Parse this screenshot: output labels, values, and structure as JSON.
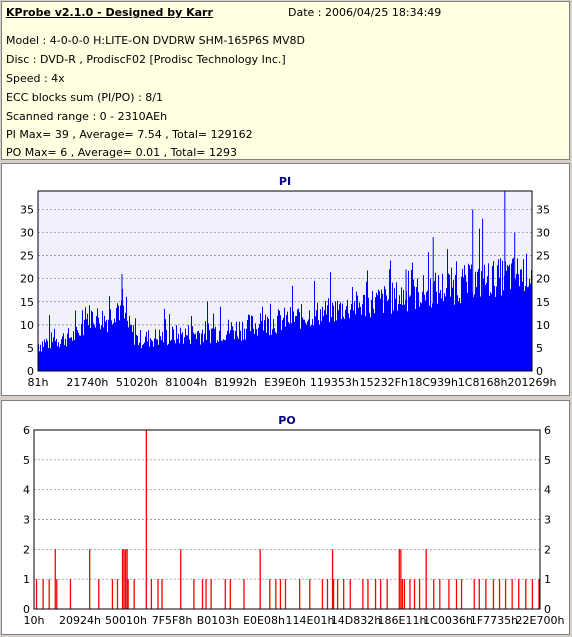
{
  "info": {
    "title": "KProbe v2.1.0 - Designed by Karr",
    "date": "Date : 2006/04/25 18:34:49",
    "lines": [
      "Model : 4-0-0-0 H:LITE-ON DVDRW SHM-165P6S MV8D",
      "Disc : DVD-R , ProdiscF02 [Prodisc Technology Inc.]",
      "Speed : 4x",
      "ECC blocks sum (PI/PO) : 8/1",
      "Scanned range : 0 - 2310AEh",
      "PI Max= 39 , Average= 7.54 , Total= 129162",
      "PO Max= 6 , Average= 0.01 , Total= 1293"
    ]
  },
  "colors": {
    "pi": "#0000ff",
    "po": "#ff0000",
    "grid": "#808080",
    "pi_bg": "#f0f0ff"
  },
  "chart_data": [
    {
      "type": "bar",
      "title": "PI",
      "ylim": [
        0,
        39
      ],
      "yticks": [
        0,
        5,
        10,
        15,
        20,
        25,
        30,
        35
      ],
      "xticks": [
        "81h",
        "21740h",
        "51020h",
        "81004h",
        "B1992h",
        "E39E0h",
        "119353h",
        "15232Fh",
        "18C939h",
        "1C8168h",
        "201269h"
      ],
      "grid": true,
      "profile": [
        {
          "x": 0.0,
          "base": 5,
          "spread": 3
        },
        {
          "x": 0.08,
          "base": 7,
          "spread": 3
        },
        {
          "x": 0.1,
          "base": 11,
          "spread": 4
        },
        {
          "x": 0.14,
          "base": 10,
          "spread": 4
        },
        {
          "x": 0.16,
          "base": 13,
          "spread": 5
        },
        {
          "x": 0.18,
          "base": 9,
          "spread": 4
        },
        {
          "x": 0.2,
          "base": 6,
          "spread": 3
        },
        {
          "x": 0.4,
          "base": 8,
          "spread": 4
        },
        {
          "x": 0.55,
          "base": 11,
          "spread": 4
        },
        {
          "x": 0.7,
          "base": 14,
          "spread": 5
        },
        {
          "x": 0.85,
          "base": 17,
          "spread": 6
        },
        {
          "x": 1.0,
          "base": 20,
          "spread": 6
        }
      ],
      "spikes": [
        {
          "x": 0.17,
          "v": 21
        },
        {
          "x": 0.745,
          "v": 22
        },
        {
          "x": 0.8,
          "v": 29
        },
        {
          "x": 0.88,
          "v": 35
        },
        {
          "x": 0.945,
          "v": 39
        },
        {
          "x": 0.9,
          "v": 33
        },
        {
          "x": 0.965,
          "v": 30
        }
      ]
    },
    {
      "type": "bar",
      "title": "PO",
      "ylim": [
        0,
        6
      ],
      "yticks": [
        0,
        1,
        2,
        3,
        4,
        5,
        6
      ],
      "xticks": [
        "10h",
        "20924h",
        "50010h",
        "7F5F8h",
        "B0103h",
        "E0E08h",
        "114E01h",
        "14D832h",
        "186E11h",
        "1C0036h",
        "1F7735h",
        "22E700h"
      ],
      "grid": true,
      "bars": [
        {
          "x": 0.005,
          "v": 1
        },
        {
          "x": 0.018,
          "v": 1
        },
        {
          "x": 0.03,
          "v": 1
        },
        {
          "x": 0.042,
          "v": 2
        },
        {
          "x": 0.045,
          "v": 1
        },
        {
          "x": 0.072,
          "v": 1
        },
        {
          "x": 0.11,
          "v": 2
        },
        {
          "x": 0.128,
          "v": 1
        },
        {
          "x": 0.155,
          "v": 1
        },
        {
          "x": 0.165,
          "v": 1
        },
        {
          "x": 0.175,
          "v": 2
        },
        {
          "x": 0.178,
          "v": 2
        },
        {
          "x": 0.181,
          "v": 2
        },
        {
          "x": 0.184,
          "v": 2
        },
        {
          "x": 0.186,
          "v": 1
        },
        {
          "x": 0.198,
          "v": 1
        },
        {
          "x": 0.222,
          "v": 6
        },
        {
          "x": 0.232,
          "v": 1
        },
        {
          "x": 0.245,
          "v": 1
        },
        {
          "x": 0.253,
          "v": 1
        },
        {
          "x": 0.29,
          "v": 2
        },
        {
          "x": 0.316,
          "v": 1
        },
        {
          "x": 0.333,
          "v": 1
        },
        {
          "x": 0.34,
          "v": 1
        },
        {
          "x": 0.35,
          "v": 1
        },
        {
          "x": 0.378,
          "v": 1
        },
        {
          "x": 0.388,
          "v": 1
        },
        {
          "x": 0.415,
          "v": 1
        },
        {
          "x": 0.447,
          "v": 2
        },
        {
          "x": 0.466,
          "v": 1
        },
        {
          "x": 0.478,
          "v": 1
        },
        {
          "x": 0.487,
          "v": 1
        },
        {
          "x": 0.497,
          "v": 1
        },
        {
          "x": 0.525,
          "v": 1
        },
        {
          "x": 0.545,
          "v": 1
        },
        {
          "x": 0.57,
          "v": 1
        },
        {
          "x": 0.58,
          "v": 1
        },
        {
          "x": 0.59,
          "v": 2
        },
        {
          "x": 0.592,
          "v": 1
        },
        {
          "x": 0.6,
          "v": 1
        },
        {
          "x": 0.612,
          "v": 1
        },
        {
          "x": 0.625,
          "v": 1
        },
        {
          "x": 0.65,
          "v": 1
        },
        {
          "x": 0.66,
          "v": 1
        },
        {
          "x": 0.675,
          "v": 1
        },
        {
          "x": 0.685,
          "v": 1
        },
        {
          "x": 0.698,
          "v": 1
        },
        {
          "x": 0.722,
          "v": 2
        },
        {
          "x": 0.725,
          "v": 2
        },
        {
          "x": 0.728,
          "v": 1
        },
        {
          "x": 0.732,
          "v": 1
        },
        {
          "x": 0.743,
          "v": 1
        },
        {
          "x": 0.752,
          "v": 1
        },
        {
          "x": 0.762,
          "v": 1
        },
        {
          "x": 0.775,
          "v": 2
        },
        {
          "x": 0.79,
          "v": 1
        },
        {
          "x": 0.802,
          "v": 1
        },
        {
          "x": 0.82,
          "v": 1
        },
        {
          "x": 0.835,
          "v": 1
        },
        {
          "x": 0.845,
          "v": 1
        },
        {
          "x": 0.87,
          "v": 1
        },
        {
          "x": 0.88,
          "v": 1
        },
        {
          "x": 0.893,
          "v": 1
        },
        {
          "x": 0.908,
          "v": 1
        },
        {
          "x": 0.92,
          "v": 1
        },
        {
          "x": 0.932,
          "v": 1
        },
        {
          "x": 0.945,
          "v": 1
        },
        {
          "x": 0.958,
          "v": 1
        },
        {
          "x": 0.972,
          "v": 1
        },
        {
          "x": 0.985,
          "v": 1
        },
        {
          "x": 0.998,
          "v": 1
        }
      ]
    }
  ]
}
